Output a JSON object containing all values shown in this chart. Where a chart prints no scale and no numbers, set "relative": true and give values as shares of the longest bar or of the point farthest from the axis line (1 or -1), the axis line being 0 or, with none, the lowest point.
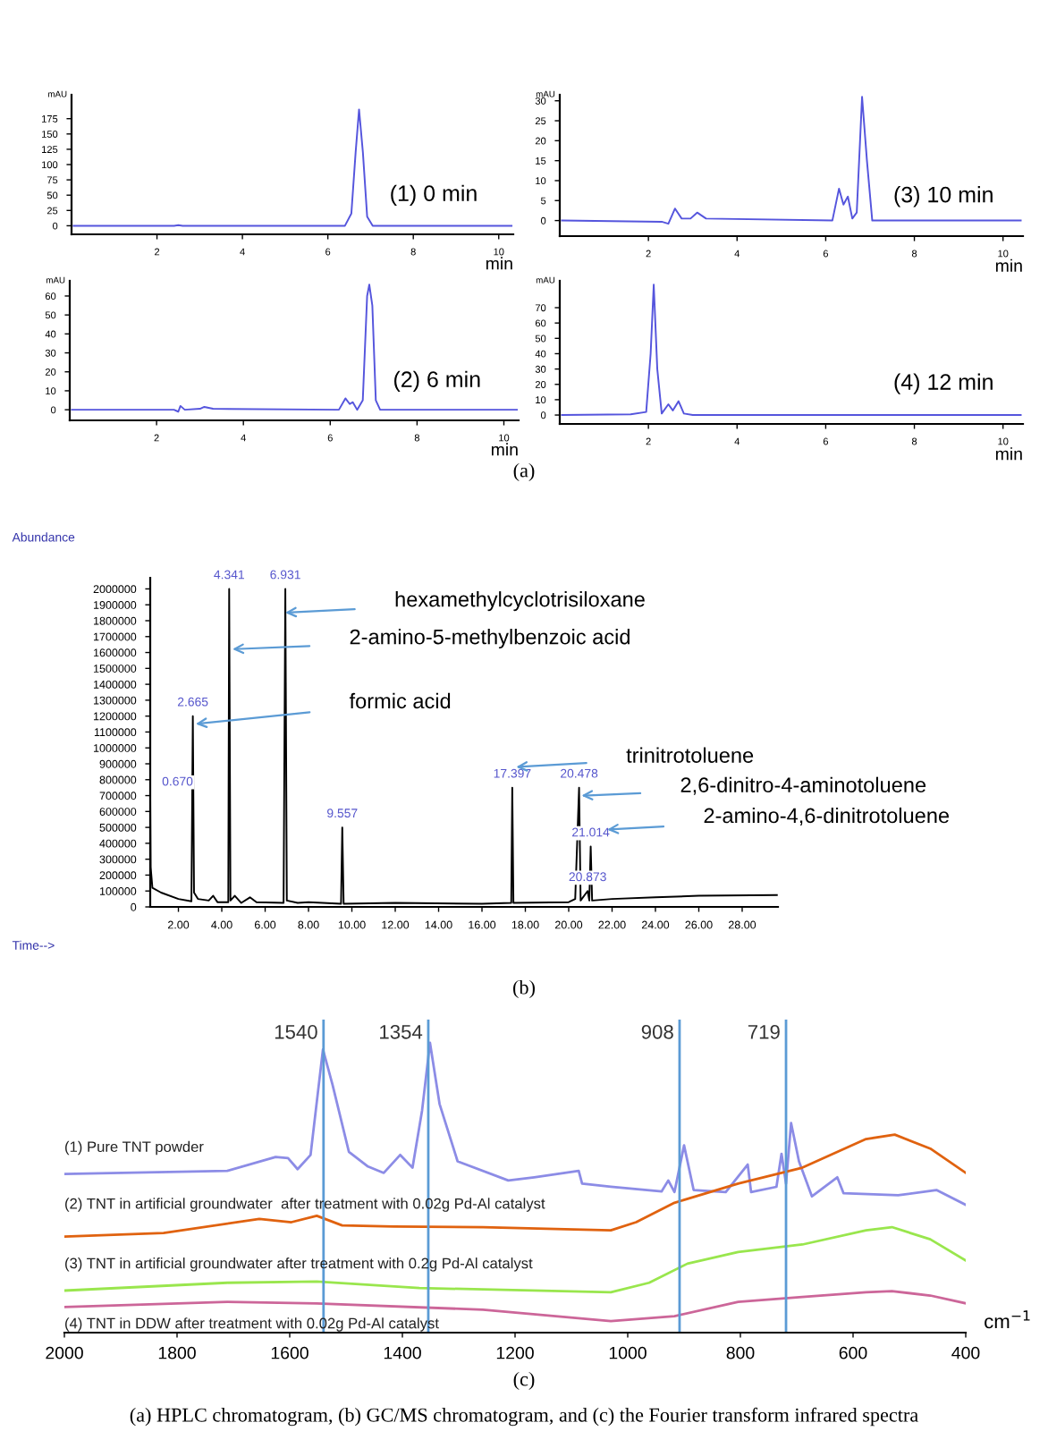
{
  "chart_data": [
    {
      "type": "line",
      "xlabel": "min",
      "ylabel": "mAU",
      "xlim": [
        0,
        10.34
      ],
      "ylim": [
        -14,
        214
      ],
      "xticks": [
        2,
        4,
        6,
        8,
        10
      ],
      "yticks": [
        0,
        25,
        50,
        75,
        100,
        125,
        150,
        175
      ],
      "annotations": [
        "(1) 0 min"
      ],
      "series": [
        {
          "color": "#5555dd",
          "x": [
            0.05,
            2.4,
            2.5,
            2.6,
            6.4,
            6.55,
            6.65,
            6.73,
            6.82,
            6.92,
            7.05,
            10.3
          ],
          "values": [
            0,
            0,
            1,
            0,
            0,
            20,
            120,
            190,
            120,
            15,
            0,
            0
          ]
        }
      ]
    },
    {
      "type": "line",
      "xlabel": "min",
      "ylabel": "mAU",
      "xlim": [
        0,
        10.45
      ],
      "ylim": [
        -3.9,
        31.5
      ],
      "xticks": [
        2,
        4,
        6,
        8,
        10
      ],
      "yticks": [
        0,
        5,
        10,
        15,
        20,
        25,
        30
      ],
      "annotations": [
        "(3) 10 min"
      ],
      "series": [
        {
          "color": "#5555dd",
          "x": [
            0.05,
            2.3,
            2.45,
            2.6,
            2.75,
            2.95,
            3.1,
            3.3,
            6.15,
            6.3,
            6.4,
            6.5,
            6.6,
            6.7,
            6.82,
            6.93,
            7.05,
            10.4
          ],
          "values": [
            0,
            -0.3,
            -0.8,
            3,
            0.5,
            0.5,
            2,
            0.5,
            0,
            8,
            4,
            6,
            0.5,
            2,
            31,
            15,
            0,
            0
          ]
        }
      ]
    },
    {
      "type": "line",
      "xlabel": "min",
      "ylabel": "mAU",
      "xlim": [
        0,
        10.34
      ],
      "ylim": [
        -5.6,
        68
      ],
      "xticks": [
        2,
        4,
        6,
        8,
        10
      ],
      "yticks": [
        0,
        10,
        20,
        30,
        40,
        50,
        60
      ],
      "annotations": [
        "(2) 6 min"
      ],
      "series": [
        {
          "color": "#5555dd",
          "x": [
            0.05,
            2.4,
            2.5,
            2.55,
            2.65,
            3.0,
            3.1,
            3.3,
            6.2,
            6.35,
            6.45,
            6.52,
            6.62,
            6.75,
            6.85,
            6.9,
            6.97,
            7.05,
            7.15,
            10.3
          ],
          "values": [
            0,
            0,
            -1,
            2,
            0,
            0.5,
            1.5,
            0.5,
            0,
            6,
            3,
            4,
            0,
            5,
            60,
            66,
            55,
            5,
            0,
            0
          ]
        }
      ]
    },
    {
      "type": "line",
      "xlabel": "min",
      "ylabel": "mAU",
      "xlim": [
        0,
        10.45
      ],
      "ylim": [
        -5.8,
        87.5
      ],
      "xticks": [
        2,
        4,
        6,
        8,
        10
      ],
      "yticks": [
        0,
        10,
        20,
        30,
        40,
        50,
        60,
        70
      ],
      "annotations": [
        "(4) 12 min",
        "(a)"
      ],
      "series": [
        {
          "color": "#5555dd",
          "x": [
            0.05,
            1.6,
            1.95,
            2.05,
            2.12,
            2.2,
            2.3,
            2.45,
            2.55,
            2.68,
            2.8,
            3.0,
            10.4
          ],
          "values": [
            0,
            0.5,
            2,
            40,
            85,
            30,
            1,
            7,
            3,
            9,
            1,
            0,
            0
          ]
        }
      ]
    },
    {
      "type": "line",
      "xlabel": "Time-->",
      "ylabel": "Abundance",
      "xlim": [
        0.7,
        29.65
      ],
      "ylim": [
        0,
        2070000
      ],
      "xticks": [
        {
          "value": 2,
          "label": "2.00"
        },
        {
          "value": 4,
          "label": "4.00"
        },
        {
          "value": 6,
          "label": "6.00"
        },
        {
          "value": 8,
          "label": "8.00"
        },
        {
          "value": 10,
          "label": "10.00"
        },
        {
          "value": 12,
          "label": "12.00"
        },
        {
          "value": 14,
          "label": "14.00"
        },
        {
          "value": 16,
          "label": "16.00"
        },
        {
          "value": 18,
          "label": "18.00"
        },
        {
          "value": 20,
          "label": "20.00"
        },
        {
          "value": 22,
          "label": "22.00"
        },
        {
          "value": 24,
          "label": "24.00"
        },
        {
          "value": 26,
          "label": "26.00"
        },
        {
          "value": 28,
          "label": "28.00"
        }
      ],
      "yticks": [
        0,
        100000,
        200000,
        300000,
        400000,
        500000,
        600000,
        700000,
        800000,
        900000,
        1000000,
        1100000,
        1200000,
        1300000,
        1400000,
        1500000,
        1600000,
        1700000,
        1800000,
        1900000,
        2000000
      ],
      "annotations": [
        {
          "text": "0.670",
          "x": 0.67,
          "y": 700000
        },
        {
          "text": "2.665",
          "x": 2.665,
          "y": 1200000
        },
        {
          "text": "4.341",
          "x": 4.341,
          "y": 2000000
        },
        {
          "text": "6.931",
          "x": 6.931,
          "y": 2000000
        },
        {
          "text": "9.557",
          "x": 9.557,
          "y": 500000
        },
        {
          "text": "17.397",
          "x": 17.397,
          "y": 750000
        },
        {
          "text": "20.478",
          "x": 20.478,
          "y": 750000
        },
        {
          "text": "21.014",
          "x": 21.014,
          "y": 380000
        },
        {
          "text": "20.873",
          "x": 20.873,
          "y": 100000
        },
        "hexamethylcyclotrisiloxane",
        "2-amino-5-methylbenzoic acid",
        "formic acid",
        "trinitrotoluene",
        "2,6-dinitro-4-aminotoluene",
        "2-amino-4,6-dinitrotoluene",
        "(b)"
      ],
      "series": [
        {
          "color": "#000000",
          "x": [
            0.7,
            0.72,
            0.8,
            1.2,
            2.0,
            2.6,
            2.665,
            2.72,
            2.9,
            3.4,
            3.6,
            3.8,
            4.3,
            4.341,
            4.4,
            4.6,
            4.9,
            5.3,
            5.6,
            6.85,
            6.931,
            7.0,
            7.5,
            8.0,
            9.5,
            9.557,
            9.62,
            12,
            16,
            17.35,
            17.397,
            17.45,
            20.0,
            20.3,
            20.478,
            20.55,
            20.873,
            20.95,
            21.014,
            21.08,
            22,
            24,
            26,
            29.6
          ],
          "values": [
            700000,
            250000,
            120000,
            90000,
            50000,
            35000,
            1200000,
            90000,
            50000,
            40000,
            70000,
            30000,
            30000,
            2000000,
            40000,
            70000,
            25000,
            60000,
            30000,
            25000,
            2000000,
            40000,
            25000,
            30000,
            20000,
            500000,
            20000,
            25000,
            20000,
            25000,
            750000,
            25000,
            30000,
            50000,
            750000,
            40000,
            100000,
            40000,
            380000,
            40000,
            50000,
            60000,
            70000,
            75000
          ]
        }
      ]
    },
    {
      "type": "line",
      "relative": true,
      "xlabel": "cm$^{−1}$",
      "xlim": [
        2000,
        400
      ],
      "xticks": [
        2000,
        1800,
        1600,
        1400,
        1200,
        1000,
        800,
        600,
        400
      ],
      "ref_lines": [
        {
          "axis": "x",
          "value": 1540,
          "label": "1540",
          "color": "#5b9bd5"
        },
        {
          "axis": "x",
          "value": 1354,
          "label": "1354",
          "color": "#5b9bd5"
        },
        {
          "axis": "x",
          "value": 908,
          "label": "908",
          "color": "#5b9bd5"
        },
        {
          "axis": "x",
          "value": 719,
          "label": "719",
          "color": "#5b9bd5"
        }
      ],
      "annotations": [
        "(c)",
        "(a) HPLC chromatogram, (b) GC/MS chromatogram, and (c) the Fourier transform infrared spectra"
      ],
      "series": [
        {
          "name": "(1) Pure TNT powder",
          "color": "#8c8ce6",
          "x": [
            2000,
            1711,
            1625,
            1603,
            1586,
            1563,
            1541,
            1524,
            1495,
            1461,
            1433,
            1404,
            1382,
            1365,
            1351,
            1334,
            1302,
            1212,
            1166,
            1087,
            1081,
            1030,
            940,
            928,
            917,
            900,
            883,
            826,
            787,
            781,
            736,
            727,
            719,
            710,
            696,
            673,
            628,
            617,
            520,
            452,
            400
          ],
          "values": [
            0.547,
            0.558,
            0.606,
            0.602,
            0.564,
            0.613,
            0.977,
            0.855,
            0.624,
            0.573,
            0.551,
            0.613,
            0.569,
            0.767,
            1.0,
            0.789,
            0.591,
            0.525,
            0.536,
            0.558,
            0.514,
            0.503,
            0.487,
            0.525,
            0.485,
            0.646,
            0.492,
            0.485,
            0.58,
            0.485,
            0.503,
            0.617,
            0.514,
            0.723,
            0.591,
            0.47,
            0.536,
            0.481,
            0.474,
            0.492,
            0.441
          ]
        },
        {
          "name": "(2) TNT in artificial groundwater  after treatment with 0.02g Pd-Al catalyst",
          "color": "#e0620f",
          "x": [
            2000,
            1824,
            1654,
            1597,
            1552,
            1507,
            1416,
            1257,
            1030,
            985,
            917,
            804,
            690,
            577,
            526,
            463,
            400
          ],
          "values": [
            0.331,
            0.344,
            0.392,
            0.381,
            0.403,
            0.37,
            0.366,
            0.364,
            0.353,
            0.381,
            0.448,
            0.514,
            0.569,
            0.668,
            0.683,
            0.635,
            0.551
          ]
        },
        {
          "name": "(3) TNT in artificial groundwater after treatment with 0.2g Pd-Al catalyst",
          "color": "#99e64d",
          "x": [
            2000,
            1711,
            1552,
            1370,
            1030,
            962,
            894,
            804,
            690,
            577,
            531,
            463,
            400
          ],
          "values": [
            0.145,
            0.172,
            0.176,
            0.154,
            0.139,
            0.172,
            0.238,
            0.278,
            0.304,
            0.353,
            0.364,
            0.322,
            0.249
          ]
        },
        {
          "name": "(4) TNT in DDW after treatment with 0.02g Pd-Al catalyst",
          "color": "#cc6699",
          "x": [
            2000,
            1711,
            1552,
            1257,
            1030,
            917,
            804,
            690,
            577,
            531,
            463,
            400
          ],
          "values": [
            0.088,
            0.106,
            0.101,
            0.079,
            0.04,
            0.057,
            0.106,
            0.123,
            0.139,
            0.143,
            0.128,
            0.101
          ]
        }
      ]
    }
  ]
}
